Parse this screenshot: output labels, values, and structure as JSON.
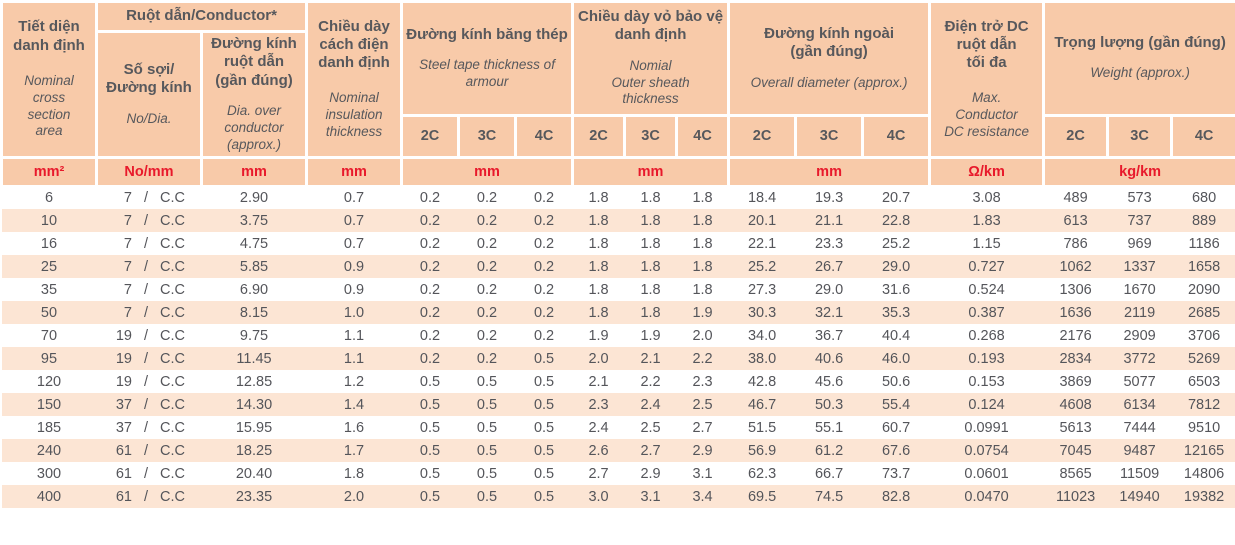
{
  "colors": {
    "header_bg": "#f8caa9",
    "stripe_bg": "#fce5d4",
    "header_text": "#57585c",
    "unit_red": "#e8192b",
    "data_text": "#54555a"
  },
  "table": {
    "header": {
      "area": {
        "vi": "Tiết diện\ndanh định",
        "en": "Nominal\ncross\nsection\narea"
      },
      "conductor_group": "Ruột dẫn/Conductor*",
      "no_dia": {
        "vi": "Số sợi/\nĐường kính",
        "en": "No/Dia."
      },
      "dia_over": {
        "vi": "Đường kính\nruột dẫn\n(gần đúng)",
        "en": "Dia. over\nconductor\n(approx.)"
      },
      "insulation": {
        "vi": "Chiều dày\ncách điện\ndanh định",
        "en": "Nominal\ninsulation\nthickness"
      },
      "steel_tape": {
        "vi": "Đường kính băng thép",
        "en": "Steel tape thickness of\narmour"
      },
      "outer_sheath": {
        "vi": "Chiều dày vỏ bảo vệ\ndanh định",
        "en": "Nomial\nOuter sheath\nthickness"
      },
      "overall_dia": {
        "vi": "Đường kính ngoài\n(gần đúng)",
        "en": "Overall diameter (approx.)"
      },
      "dc_resistance": {
        "vi": "Điện trở DC\nruột dẫn\ntối đa",
        "en": "Max.\nConductor\nDC resistance"
      },
      "weight": {
        "vi": "Trọng lượng (gần đúng)",
        "en": "Weight (approx.)"
      }
    },
    "core_labels": [
      "2C",
      "3C",
      "4C"
    ],
    "units": {
      "area": "mm²",
      "no_dia": "No/mm",
      "dia_over": "mm",
      "insulation": "mm",
      "steel_tape": "mm",
      "outer_sheath": "mm",
      "overall_dia": "mm",
      "dc_resistance": "Ω/km",
      "weight": "kg/km"
    },
    "no_dia_separator": "/",
    "rows": [
      {
        "area": "6",
        "strands": "7",
        "material": "C.C",
        "dia": "2.90",
        "ins": "0.7",
        "steel": [
          "0.2",
          "0.2",
          "0.2"
        ],
        "sheath": [
          "1.8",
          "1.8",
          "1.8"
        ],
        "od": [
          "18.4",
          "19.3",
          "20.7"
        ],
        "dc": "3.08",
        "wt": [
          "489",
          "573",
          "680"
        ]
      },
      {
        "area": "10",
        "strands": "7",
        "material": "C.C",
        "dia": "3.75",
        "ins": "0.7",
        "steel": [
          "0.2",
          "0.2",
          "0.2"
        ],
        "sheath": [
          "1.8",
          "1.8",
          "1.8"
        ],
        "od": [
          "20.1",
          "21.1",
          "22.8"
        ],
        "dc": "1.83",
        "wt": [
          "613",
          "737",
          "889"
        ]
      },
      {
        "area": "16",
        "strands": "7",
        "material": "C.C",
        "dia": "4.75",
        "ins": "0.7",
        "steel": [
          "0.2",
          "0.2",
          "0.2"
        ],
        "sheath": [
          "1.8",
          "1.8",
          "1.8"
        ],
        "od": [
          "22.1",
          "23.3",
          "25.2"
        ],
        "dc": "1.15",
        "wt": [
          "786",
          "969",
          "1186"
        ]
      },
      {
        "area": "25",
        "strands": "7",
        "material": "C.C",
        "dia": "5.85",
        "ins": "0.9",
        "steel": [
          "0.2",
          "0.2",
          "0.2"
        ],
        "sheath": [
          "1.8",
          "1.8",
          "1.8"
        ],
        "od": [
          "25.2",
          "26.7",
          "29.0"
        ],
        "dc": "0.727",
        "wt": [
          "1062",
          "1337",
          "1658"
        ]
      },
      {
        "area": "35",
        "strands": "7",
        "material": "C.C",
        "dia": "6.90",
        "ins": "0.9",
        "steel": [
          "0.2",
          "0.2",
          "0.2"
        ],
        "sheath": [
          "1.8",
          "1.8",
          "1.8"
        ],
        "od": [
          "27.3",
          "29.0",
          "31.6"
        ],
        "dc": "0.524",
        "wt": [
          "1306",
          "1670",
          "2090"
        ]
      },
      {
        "area": "50",
        "strands": "7",
        "material": "C.C",
        "dia": "8.15",
        "ins": "1.0",
        "steel": [
          "0.2",
          "0.2",
          "0.2"
        ],
        "sheath": [
          "1.8",
          "1.8",
          "1.9"
        ],
        "od": [
          "30.3",
          "32.1",
          "35.3"
        ],
        "dc": "0.387",
        "wt": [
          "1636",
          "2119",
          "2685"
        ]
      },
      {
        "area": "70",
        "strands": "19",
        "material": "C.C",
        "dia": "9.75",
        "ins": "1.1",
        "steel": [
          "0.2",
          "0.2",
          "0.2"
        ],
        "sheath": [
          "1.9",
          "1.9",
          "2.0"
        ],
        "od": [
          "34.0",
          "36.7",
          "40.4"
        ],
        "dc": "0.268",
        "wt": [
          "2176",
          "2909",
          "3706"
        ]
      },
      {
        "area": "95",
        "strands": "19",
        "material": "C.C",
        "dia": "11.45",
        "ins": "1.1",
        "steel": [
          "0.2",
          "0.2",
          "0.5"
        ],
        "sheath": [
          "2.0",
          "2.1",
          "2.2"
        ],
        "od": [
          "38.0",
          "40.6",
          "46.0"
        ],
        "dc": "0.193",
        "wt": [
          "2834",
          "3772",
          "5269"
        ]
      },
      {
        "area": "120",
        "strands": "19",
        "material": "C.C",
        "dia": "12.85",
        "ins": "1.2",
        "steel": [
          "0.5",
          "0.5",
          "0.5"
        ],
        "sheath": [
          "2.1",
          "2.2",
          "2.3"
        ],
        "od": [
          "42.8",
          "45.6",
          "50.6"
        ],
        "dc": "0.153",
        "wt": [
          "3869",
          "5077",
          "6503"
        ]
      },
      {
        "area": "150",
        "strands": "37",
        "material": "C.C",
        "dia": "14.30",
        "ins": "1.4",
        "steel": [
          "0.5",
          "0.5",
          "0.5"
        ],
        "sheath": [
          "2.3",
          "2.4",
          "2.5"
        ],
        "od": [
          "46.7",
          "50.3",
          "55.4"
        ],
        "dc": "0.124",
        "wt": [
          "4608",
          "6134",
          "7812"
        ]
      },
      {
        "area": "185",
        "strands": "37",
        "material": "C.C",
        "dia": "15.95",
        "ins": "1.6",
        "steel": [
          "0.5",
          "0.5",
          "0.5"
        ],
        "sheath": [
          "2.4",
          "2.5",
          "2.7"
        ],
        "od": [
          "51.5",
          "55.1",
          "60.7"
        ],
        "dc": "0.0991",
        "wt": [
          "5613",
          "7444",
          "9510"
        ]
      },
      {
        "area": "240",
        "strands": "61",
        "material": "C.C",
        "dia": "18.25",
        "ins": "1.7",
        "steel": [
          "0.5",
          "0.5",
          "0.5"
        ],
        "sheath": [
          "2.6",
          "2.7",
          "2.9"
        ],
        "od": [
          "56.9",
          "61.2",
          "67.6"
        ],
        "dc": "0.0754",
        "wt": [
          "7045",
          "9487",
          "12165"
        ]
      },
      {
        "area": "300",
        "strands": "61",
        "material": "C.C",
        "dia": "20.40",
        "ins": "1.8",
        "steel": [
          "0.5",
          "0.5",
          "0.5"
        ],
        "sheath": [
          "2.7",
          "2.9",
          "3.1"
        ],
        "od": [
          "62.3",
          "66.7",
          "73.7"
        ],
        "dc": "0.0601",
        "wt": [
          "8565",
          "11509",
          "14806"
        ]
      },
      {
        "area": "400",
        "strands": "61",
        "material": "C.C",
        "dia": "23.35",
        "ins": "2.0",
        "steel": [
          "0.5",
          "0.5",
          "0.5"
        ],
        "sheath": [
          "3.0",
          "3.1",
          "3.4"
        ],
        "od": [
          "69.5",
          "74.5",
          "82.8"
        ],
        "dc": "0.0470",
        "wt": [
          "11023",
          "14940",
          "19382"
        ]
      }
    ]
  }
}
